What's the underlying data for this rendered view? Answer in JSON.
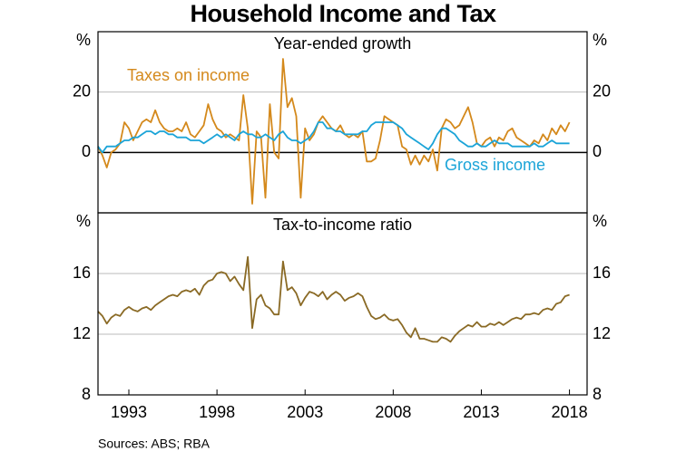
{
  "title": "Household Income and Tax",
  "source": "Sources: ABS; RBA",
  "chart_data": [
    {
      "type": "line",
      "title": "Year-ended growth",
      "y_unit": "%",
      "x": [
        1991.75,
        1992,
        1992.25,
        1992.5,
        1992.75,
        1993,
        1993.25,
        1993.5,
        1993.75,
        1994,
        1994.25,
        1994.5,
        1994.75,
        1995,
        1995.25,
        1995.5,
        1995.75,
        1996,
        1996.25,
        1996.5,
        1996.75,
        1997,
        1997.25,
        1997.5,
        1997.75,
        1998,
        1998.25,
        1998.5,
        1998.75,
        1999,
        1999.25,
        1999.5,
        1999.75,
        2000,
        2000.25,
        2000.5,
        2000.75,
        2001,
        2001.25,
        2001.5,
        2001.75,
        2002,
        2002.25,
        2002.5,
        2002.75,
        2003,
        2003.25,
        2003.5,
        2003.75,
        2004,
        2004.25,
        2004.5,
        2004.75,
        2005,
        2005.25,
        2005.5,
        2005.75,
        2006,
        2006.25,
        2006.5,
        2006.75,
        2007,
        2007.25,
        2007.5,
        2007.75,
        2008,
        2008.25,
        2008.5,
        2008.75,
        2009,
        2009.25,
        2009.5,
        2009.75,
        2010,
        2010.25,
        2010.5,
        2010.75,
        2011,
        2011.25,
        2011.5,
        2011.75,
        2012,
        2012.25,
        2012.5,
        2012.75,
        2013,
        2013.25,
        2013.5,
        2013.75,
        2014,
        2014.25,
        2014.5,
        2014.75,
        2015,
        2015.25,
        2015.5,
        2015.75,
        2016,
        2016.25,
        2016.5,
        2016.75,
        2017,
        2017.25,
        2017.5,
        2017.75,
        2018,
        2018.25,
        2018.5
      ],
      "series": [
        {
          "name": "Taxes on income",
          "color": "#d4891c",
          "values": [
            2,
            -1,
            -5,
            0,
            1,
            3,
            10,
            8,
            4,
            7,
            10,
            11,
            10,
            14,
            10,
            8,
            7,
            7,
            8,
            7,
            10,
            6,
            5,
            7,
            9,
            16,
            11,
            8,
            7,
            5,
            6,
            5,
            4,
            19,
            8,
            -17,
            7,
            5,
            -15,
            16,
            0,
            -2,
            31,
            15,
            18,
            12,
            -15,
            8,
            4,
            6,
            10,
            12,
            10,
            8,
            7,
            9,
            6,
            5,
            6,
            5,
            7,
            -3,
            -3,
            -2,
            4,
            12,
            11,
            10,
            9,
            2,
            1,
            -4,
            -1,
            -4,
            -1,
            -3,
            1,
            -6,
            8,
            11,
            10,
            8,
            9,
            12,
            15,
            10,
            3,
            2,
            4,
            5,
            2,
            5,
            4,
            7,
            8,
            5,
            4,
            3,
            2,
            4,
            3,
            6,
            4,
            8,
            6,
            9,
            7,
            10
          ]
        },
        {
          "name": "Gross income",
          "color": "#1ba4d8",
          "values": [
            2,
            0,
            2,
            2,
            2,
            3,
            4,
            4,
            5,
            5,
            6,
            7,
            7,
            6,
            7,
            7,
            6,
            6,
            5,
            5,
            5,
            4,
            4,
            4,
            3,
            4,
            5,
            6,
            5,
            6,
            5,
            4,
            6,
            7,
            6,
            6,
            5,
            5,
            6,
            5,
            4,
            6,
            7,
            5,
            4,
            4,
            3,
            4,
            5,
            7,
            10,
            10,
            8,
            8,
            7,
            7,
            6,
            6,
            6,
            6,
            7,
            7,
            9,
            10,
            10,
            10,
            10,
            10,
            9,
            8,
            6,
            5,
            4,
            3,
            2,
            1,
            3,
            6,
            8,
            8,
            7,
            6,
            4,
            3,
            2,
            2,
            3,
            2,
            2,
            3,
            4,
            3,
            3,
            3,
            2,
            2,
            2,
            2,
            2,
            3,
            2,
            2,
            3,
            4,
            3,
            3,
            3,
            3
          ]
        }
      ],
      "xlim": [
        1991.75,
        2019.5
      ],
      "ylim": [
        -20,
        40
      ],
      "yticks": [
        0,
        20
      ],
      "grid": true
    },
    {
      "type": "line",
      "title": "Tax-to-income ratio",
      "y_unit": "%",
      "x": [
        1991.75,
        1992,
        1992.25,
        1992.5,
        1992.75,
        1993,
        1993.25,
        1993.5,
        1993.75,
        1994,
        1994.25,
        1994.5,
        1994.75,
        1995,
        1995.25,
        1995.5,
        1995.75,
        1996,
        1996.25,
        1996.5,
        1996.75,
        1997,
        1997.25,
        1997.5,
        1997.75,
        1998,
        1998.25,
        1998.5,
        1998.75,
        1999,
        1999.25,
        1999.5,
        1999.75,
        2000,
        2000.25,
        2000.5,
        2000.75,
        2001,
        2001.25,
        2001.5,
        2001.75,
        2002,
        2002.25,
        2002.5,
        2002.75,
        2003,
        2003.25,
        2003.5,
        2003.75,
        2004,
        2004.25,
        2004.5,
        2004.75,
        2005,
        2005.25,
        2005.5,
        2005.75,
        2006,
        2006.25,
        2006.5,
        2006.75,
        2007,
        2007.25,
        2007.5,
        2007.75,
        2008,
        2008.25,
        2008.5,
        2008.75,
        2009,
        2009.25,
        2009.5,
        2009.75,
        2010,
        2010.25,
        2010.5,
        2010.75,
        2011,
        2011.25,
        2011.5,
        2011.75,
        2012,
        2012.25,
        2012.5,
        2012.75,
        2013,
        2013.25,
        2013.5,
        2013.75,
        2014,
        2014.25,
        2014.5,
        2014.75,
        2015,
        2015.25,
        2015.5,
        2015.75,
        2016,
        2016.25,
        2016.5,
        2016.75,
        2017,
        2017.25,
        2017.5,
        2017.75,
        2018,
        2018.25,
        2018.5
      ],
      "series": [
        {
          "color": "#8a6a25",
          "values": [
            13.5,
            13.2,
            12.7,
            13.1,
            13.3,
            13.2,
            13.6,
            13.8,
            13.6,
            13.5,
            13.7,
            13.8,
            13.6,
            13.9,
            14.1,
            14.3,
            14.5,
            14.6,
            14.5,
            14.8,
            14.9,
            14.8,
            15.0,
            14.6,
            15.2,
            15.5,
            15.6,
            16.0,
            16.1,
            16.0,
            15.5,
            15.8,
            15.3,
            14.9,
            17.1,
            12.4,
            14.3,
            14.6,
            13.9,
            13.7,
            13.3,
            13.3,
            16.8,
            14.9,
            15.1,
            14.7,
            13.9,
            14.4,
            14.8,
            14.7,
            14.5,
            14.8,
            14.3,
            14.6,
            14.8,
            14.6,
            14.2,
            14.4,
            14.5,
            14.7,
            14.5,
            13.8,
            13.2,
            13.0,
            13.1,
            13.3,
            13.0,
            12.9,
            13.0,
            12.6,
            12.1,
            11.8,
            12.4,
            11.7,
            11.7,
            11.6,
            11.5,
            11.5,
            11.8,
            11.7,
            11.5,
            11.9,
            12.2,
            12.4,
            12.6,
            12.5,
            12.8,
            12.5,
            12.5,
            12.7,
            12.6,
            12.8,
            12.6,
            12.8,
            13.0,
            13.1,
            13.0,
            13.3,
            13.3,
            13.4,
            13.3,
            13.6,
            13.7,
            13.6,
            14.0,
            14.1,
            14.5,
            14.6
          ]
        }
      ],
      "xlim": [
        1991.75,
        2019.5
      ],
      "ylim": [
        8,
        20
      ],
      "yticks": [
        8,
        12,
        16
      ],
      "grid": true,
      "xticks": [
        {
          "value": 1993.5,
          "label": "1993"
        },
        {
          "value": 1998.5,
          "label": "1998"
        },
        {
          "value": 2003.5,
          "label": "2003"
        },
        {
          "value": 2008.5,
          "label": "2008"
        },
        {
          "value": 2013.5,
          "label": "2013"
        },
        {
          "value": 2018.5,
          "label": "2018"
        }
      ]
    }
  ]
}
